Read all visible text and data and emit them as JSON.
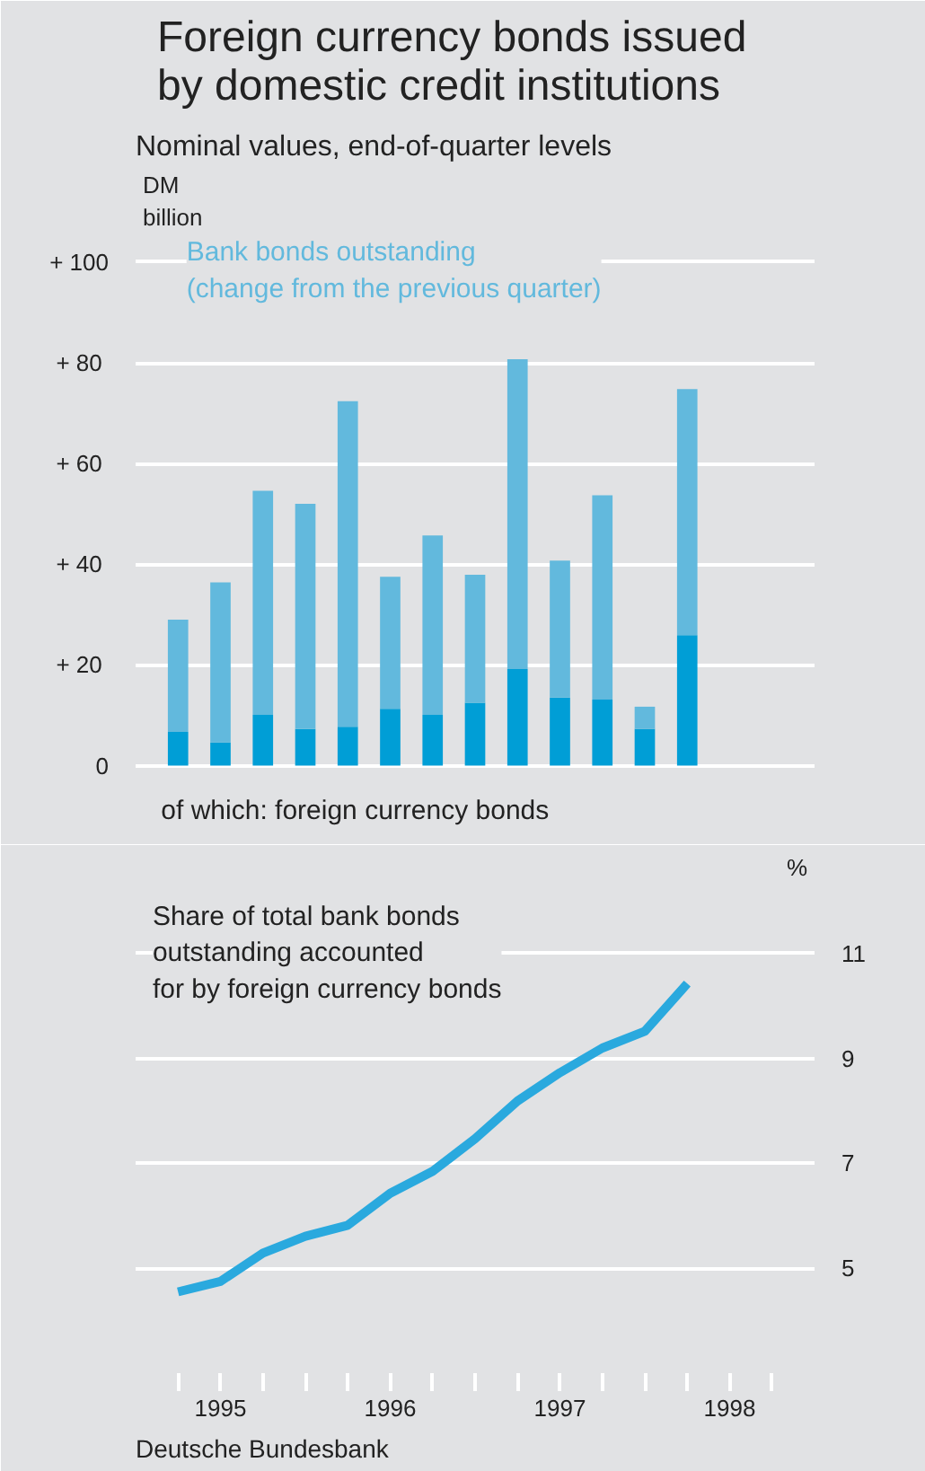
{
  "chart_data": [
    {
      "type": "bar",
      "title": "Foreign currency bonds issued\nby domestic credit institutions",
      "subtitle": "Nominal values, end-of-quarter levels",
      "ylabel": "DM\nbillion",
      "stacked": true,
      "x": [
        1995.25,
        1995.5,
        1995.75,
        1996.0,
        1996.25,
        1996.5,
        1996.75,
        1997.0,
        1997.25,
        1997.5,
        1997.75,
        1998.0,
        1998.25
      ],
      "series": [
        {
          "name": "of which: foreign currency bonds",
          "color": "#009ed6",
          "values": [
            6.7,
            4.6,
            10.1,
            7.3,
            7.7,
            11.3,
            10.1,
            12.5,
            19.2,
            13.5,
            13.1,
            7.3,
            25.9
          ]
        },
        {
          "name": "Bank bonds outstanding\n(change from the previous quarter)",
          "color": "#62b9dd",
          "values": [
            22.3,
            31.8,
            44.5,
            44.7,
            64.7,
            26.2,
            35.6,
            25.4,
            61.5,
            27.2,
            40.6,
            4.4,
            48.9
          ]
        }
      ],
      "xlim": [
        1995,
        1999
      ],
      "ylim": [
        -14,
        118
      ],
      "yticks": [
        0,
        {
          "value": 20,
          "label": "+  20"
        },
        {
          "value": 40,
          "label": "+  40"
        },
        {
          "value": 60,
          "label": "+  60"
        },
        {
          "value": 80,
          "label": "+  80"
        },
        {
          "value": 100,
          "label": "+ 100"
        }
      ],
      "tick_labels": "y",
      "grid": "y"
    },
    {
      "type": "line",
      "y2label": "%",
      "annotations": [
        "Deutsche Bundesbank"
      ],
      "x": [
        1995.25,
        1995.5,
        1995.75,
        1996.0,
        1996.25,
        1996.5,
        1996.75,
        1997.0,
        1997.25,
        1997.5,
        1997.75,
        1998.0,
        1998.25
      ],
      "series": [
        {
          "name": "Share of total bank bonds\noutstanding accounted\nfor by foreign currency bonds",
          "color": "#2aa9de",
          "axis": "y2",
          "values": [
            4.55,
            4.75,
            5.29,
            5.61,
            5.82,
            6.43,
            6.85,
            7.47,
            8.19,
            8.73,
            9.2,
            9.52,
            10.43
          ]
        }
      ],
      "xlim": [
        1995,
        1999
      ],
      "y2lim": [
        3,
        12.9
      ],
      "y2ticks": [
        5,
        7,
        9,
        11
      ],
      "xticks": [
        {
          "value": 1995.25,
          "label": null
        },
        {
          "value": 1995.5,
          "label": "1995"
        },
        {
          "value": 1995.75,
          "label": null
        },
        {
          "value": 1996.0,
          "label": null
        },
        {
          "value": 1996.25,
          "label": null
        },
        {
          "value": 1996.5,
          "label": "1996"
        },
        {
          "value": 1996.75,
          "label": null
        },
        {
          "value": 1997.0,
          "label": null
        },
        {
          "value": 1997.25,
          "label": null
        },
        {
          "value": 1997.5,
          "label": "1997"
        },
        {
          "value": 1997.75,
          "label": null
        },
        {
          "value": 1998.0,
          "label": null
        },
        {
          "value": 1998.25,
          "label": null
        },
        {
          "value": 1998.5,
          "label": "1998"
        },
        {
          "value": 1998.75,
          "label": null
        }
      ],
      "grid": "y",
      "line_style": "solid",
      "marker": "none"
    }
  ]
}
